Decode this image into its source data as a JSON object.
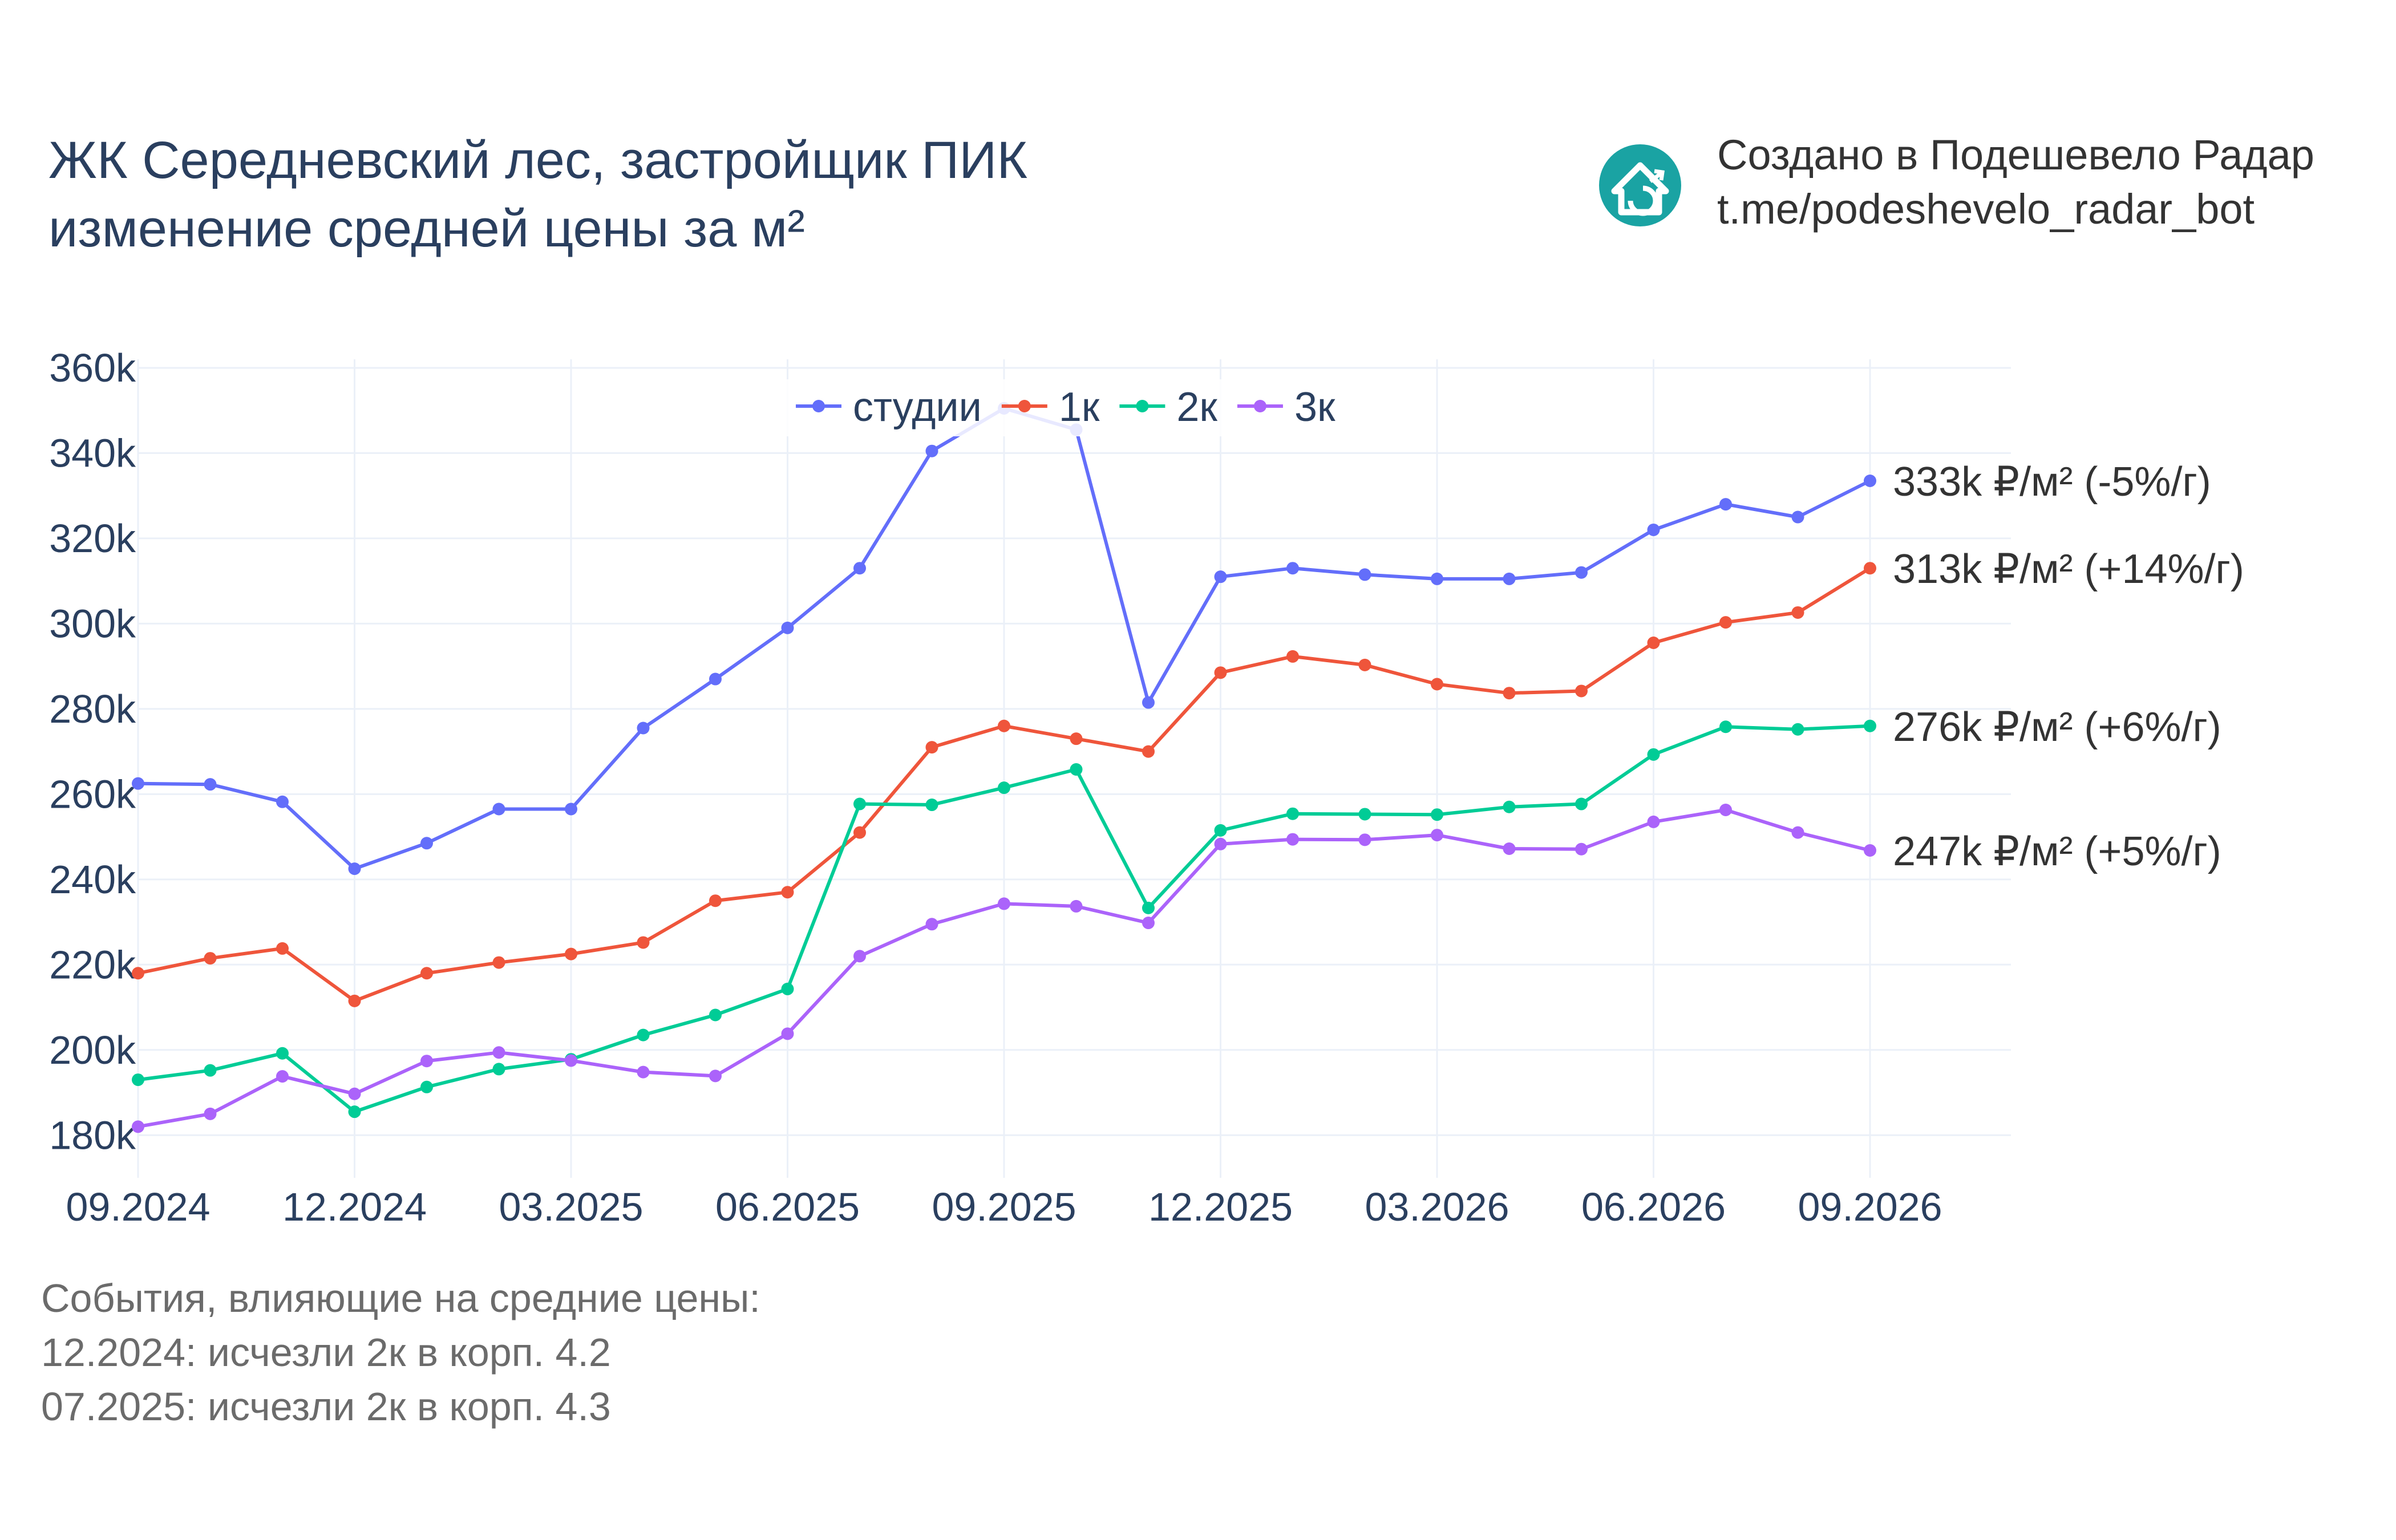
{
  "title": {
    "line1": "ЖК Середневский лес, застройщик ПИК",
    "line2": "изменение средней цены за м²"
  },
  "credit": {
    "line1": "Создано в Подешевело Радар",
    "line2": "t.me/podeshevelo_radar_bot",
    "logo_icon": "house-logo-icon",
    "logo_color": "#1aa3a3"
  },
  "events": {
    "heading": "События, влияющие на средние цены:",
    "items": [
      "12.2024: исчезли 2к в корп. 4.2",
      "07.2025: исчезли 2к в корп. 4.3"
    ]
  },
  "chart_data": {
    "type": "line",
    "x": [
      "09.2024",
      "10.2024",
      "11.2024",
      "12.2024",
      "01.2025",
      "02.2025",
      "03.2025",
      "04.2025",
      "05.2025",
      "06.2025",
      "07.2025",
      "08.2025",
      "09.2025",
      "10.2025",
      "11.2025",
      "12.2025",
      "01.2026",
      "02.2026",
      "03.2026",
      "04.2026",
      "05.2026",
      "06.2026",
      "07.2026",
      "08.2026",
      "09.2026"
    ],
    "x_tick_labels": [
      "09.2024",
      "12.2024",
      "03.2025",
      "06.2025",
      "09.2025",
      "12.2025",
      "03.2026",
      "06.2026",
      "09.2026"
    ],
    "y_tick_labels": [
      "180k",
      "200k",
      "220k",
      "240k",
      "260k",
      "280k",
      "300k",
      "320k",
      "340k",
      "360k"
    ],
    "y_ticks": [
      180000,
      200000,
      220000,
      240000,
      260000,
      280000,
      300000,
      320000,
      340000,
      360000
    ],
    "ylim": [
      170000,
      362000
    ],
    "grid": true,
    "legend_position": "top-center",
    "series": [
      {
        "name": "студии",
        "color": "#636efa",
        "values": [
          262500,
          262300,
          258200,
          242500,
          248500,
          256500,
          256500,
          275500,
          287000,
          299000,
          313000,
          340500,
          350500,
          345500,
          281500,
          311000,
          313000,
          311500,
          310500,
          310500,
          312000,
          322000,
          328000,
          325000,
          333500
        ],
        "end_label": "333k ₽/м² (-5%/г)"
      },
      {
        "name": "1к",
        "color": "#ef553b",
        "values": [
          218000,
          221500,
          223800,
          211500,
          218000,
          220500,
          222500,
          225200,
          235000,
          237000,
          251000,
          271000,
          276000,
          273000,
          270000,
          288500,
          292300,
          290300,
          285800,
          283700,
          284200,
          295500,
          300300,
          302600,
          313000
        ],
        "end_label": "313k ₽/м² (+14%/г)"
      },
      {
        "name": "2к",
        "color": "#00cc96",
        "values": [
          193000,
          195200,
          199200,
          185500,
          191300,
          195500,
          197800,
          203500,
          208200,
          214300,
          257700,
          257500,
          261500,
          265800,
          233300,
          251500,
          255400,
          255300,
          255200,
          257000,
          257700,
          269300,
          275800,
          275200,
          276000
        ],
        "end_label": "276k ₽/м² (+6%/г)"
      },
      {
        "name": "3к",
        "color": "#ab63fa",
        "values": [
          182000,
          185000,
          193800,
          189700,
          197400,
          199400,
          197500,
          194800,
          193900,
          203800,
          222000,
          229500,
          234300,
          233700,
          229800,
          248300,
          249400,
          249300,
          250400,
          247200,
          247100,
          253500,
          256300,
          251000,
          246800
        ],
        "end_label": "247k ₽/м² (+5%/г)"
      }
    ]
  }
}
